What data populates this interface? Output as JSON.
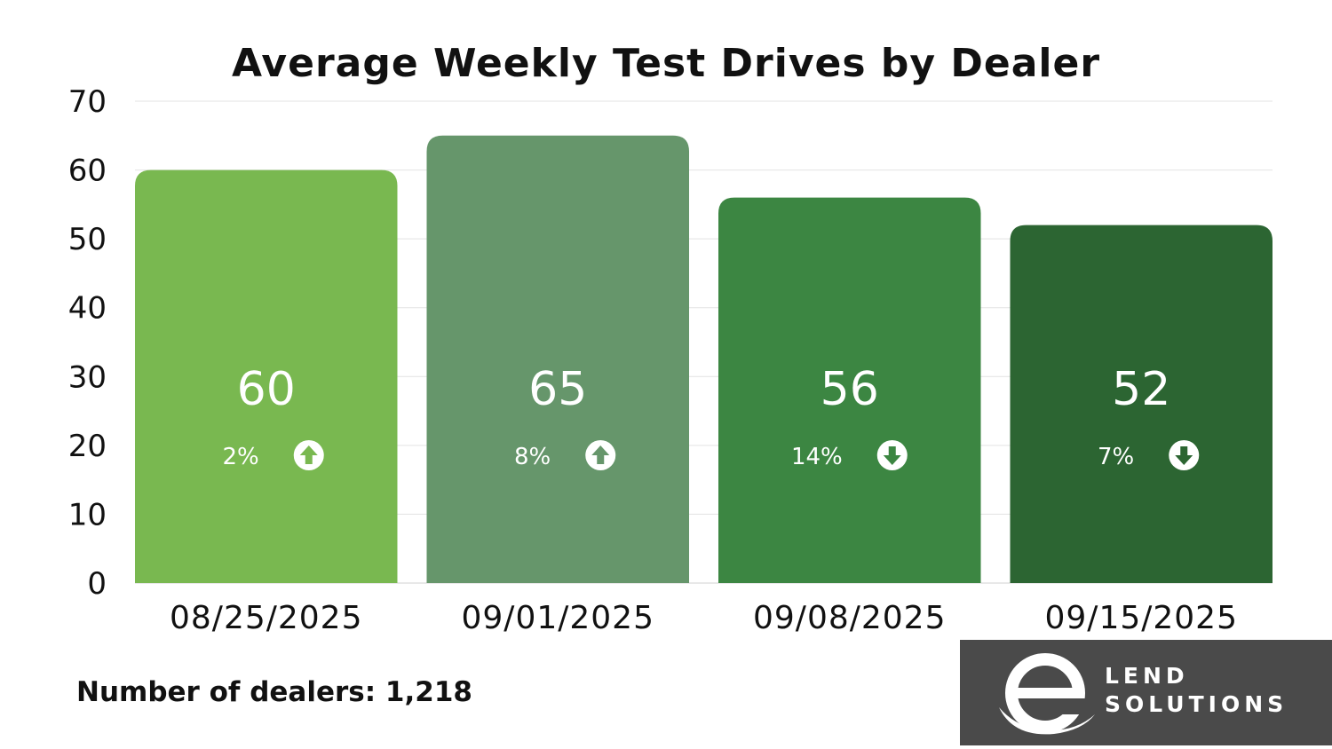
{
  "chart_data": {
    "type": "bar",
    "title": "Average Weekly Test Drives by Dealer",
    "categories": [
      "08/25/2025",
      "09/01/2025",
      "09/08/2025",
      "09/15/2025"
    ],
    "values": [
      60,
      65,
      56,
      52
    ],
    "changes": [
      {
        "label": "2%",
        "direction": "up"
      },
      {
        "label": "8%",
        "direction": "up"
      },
      {
        "label": "14%",
        "direction": "down"
      },
      {
        "label": "7%",
        "direction": "down"
      }
    ],
    "bar_colors": [
      "#79b850",
      "#66966b",
      "#3c8642",
      "#2c6532"
    ],
    "ylim": [
      0,
      70
    ],
    "yticks": [
      0,
      10,
      20,
      30,
      40,
      50,
      60,
      70
    ],
    "grid": true,
    "xlabel": "",
    "ylabel": ""
  },
  "footnote": "Number of dealers: 1,218",
  "logo": {
    "line1": "LEND",
    "line2": "SOLUTIONS",
    "mark_icon": "e-swoosh-logo-icon"
  }
}
